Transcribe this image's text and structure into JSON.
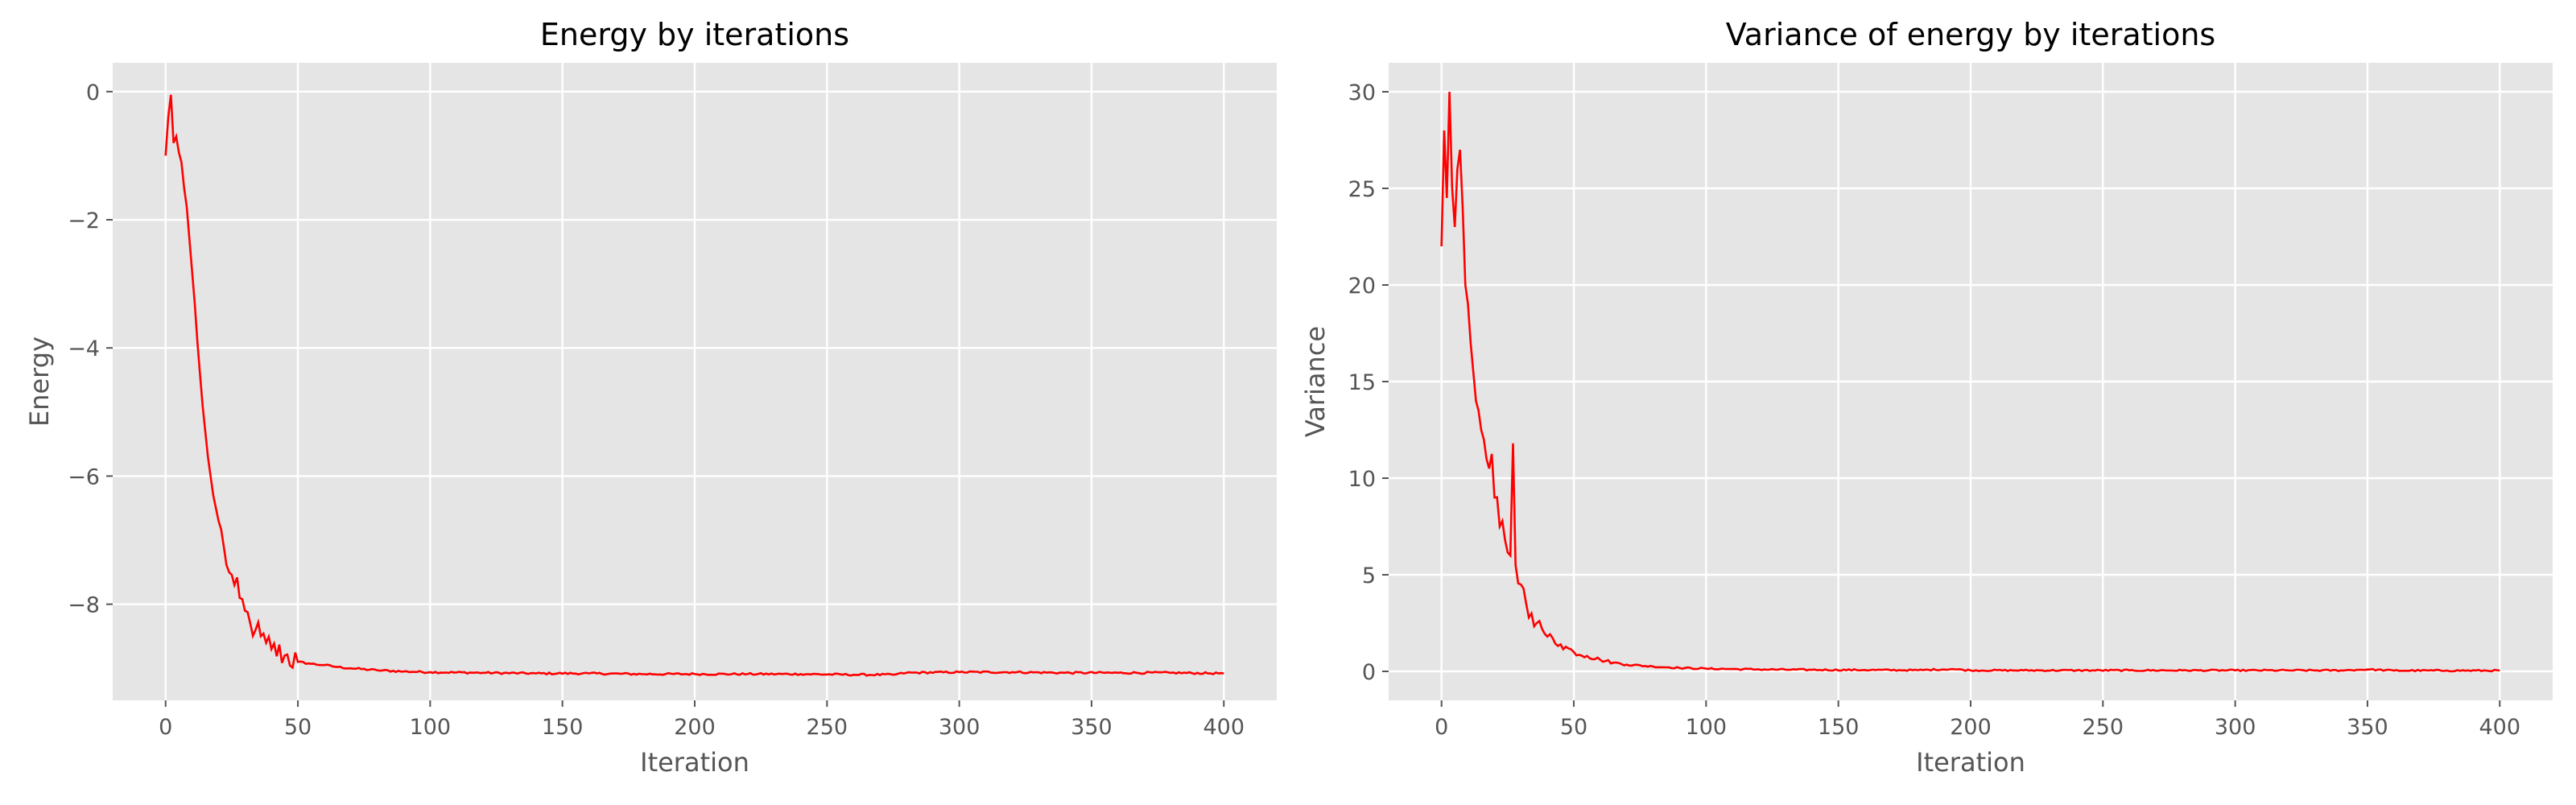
{
  "chart_data": [
    {
      "type": "line",
      "title": "Energy by iterations",
      "xlabel": "Iteration",
      "ylabel": "Energy",
      "xlim": [
        -20,
        420
      ],
      "ylim": [
        -9.5,
        0.45
      ],
      "xticks": [
        0,
        50,
        100,
        150,
        200,
        250,
        300,
        350,
        400
      ],
      "xtick_labels": [
        "0",
        "50",
        "100",
        "150",
        "200",
        "250",
        "300",
        "350",
        "400"
      ],
      "yticks": [
        0,
        -2,
        -4,
        -6,
        -8
      ],
      "ytick_labels": [
        "0",
        "−2",
        "−4",
        "−6",
        "−8"
      ],
      "grid": true,
      "series": [
        {
          "color": "#ff0000",
          "x": [
            0,
            1,
            2,
            3,
            4,
            5,
            6,
            7,
            8,
            9,
            10,
            11,
            12,
            13,
            14,
            15,
            16,
            17,
            18,
            19,
            20,
            22,
            24,
            26,
            28,
            30,
            32,
            34,
            36,
            38,
            40,
            45,
            50,
            55,
            60,
            65,
            70,
            80,
            90,
            100,
            120,
            140,
            160,
            180,
            200,
            220,
            240,
            260,
            275,
            280,
            300,
            320,
            340,
            360,
            380,
            400
          ],
          "y": [
            -1.0,
            -0.4,
            -0.05,
            -0.8,
            -0.7,
            -0.95,
            -1.1,
            -1.5,
            -1.8,
            -2.3,
            -2.8,
            -3.3,
            -3.9,
            -4.4,
            -4.9,
            -5.3,
            -5.7,
            -6.0,
            -6.3,
            -6.5,
            -6.7,
            -7.1,
            -7.5,
            -7.7,
            -7.9,
            -8.1,
            -8.3,
            -8.4,
            -8.5,
            -8.6,
            -8.7,
            -8.8,
            -8.9,
            -8.93,
            -8.95,
            -8.98,
            -9.0,
            -9.03,
            -9.05,
            -9.06,
            -9.07,
            -9.08,
            -9.08,
            -9.09,
            -9.09,
            -9.09,
            -9.09,
            -9.1,
            -9.1,
            -9.07,
            -9.06,
            -9.06,
            -9.07,
            -9.07,
            -9.07,
            -9.08
          ]
        }
      ]
    },
    {
      "type": "line",
      "title": "Variance of energy by iterations",
      "xlabel": "Iteration",
      "ylabel": "Variance",
      "xlim": [
        -20,
        420
      ],
      "ylim": [
        -1.5,
        31.5
      ],
      "xticks": [
        0,
        50,
        100,
        150,
        200,
        250,
        300,
        350,
        400
      ],
      "xtick_labels": [
        "0",
        "50",
        "100",
        "150",
        "200",
        "250",
        "300",
        "350",
        "400"
      ],
      "yticks": [
        0,
        5,
        10,
        15,
        20,
        25,
        30
      ],
      "ytick_labels": [
        "0",
        "5",
        "10",
        "15",
        "20",
        "25",
        "30"
      ],
      "grid": true,
      "series": [
        {
          "color": "#ff0000",
          "x": [
            0,
            1,
            2,
            3,
            4,
            5,
            6,
            7,
            8,
            9,
            10,
            11,
            12,
            13,
            14,
            15,
            16,
            17,
            18,
            20,
            22,
            24,
            26,
            27,
            28,
            30,
            32,
            34,
            36,
            38,
            40,
            45,
            50,
            55,
            60,
            65,
            70,
            80,
            90,
            100,
            110,
            120,
            140,
            160,
            180,
            193,
            200,
            220,
            240,
            260,
            280,
            300,
            320,
            340,
            350,
            360,
            380,
            400
          ],
          "y": [
            22,
            28,
            24.5,
            30,
            25,
            23,
            26,
            27,
            24,
            20,
            19,
            17,
            15.5,
            14,
            13.5,
            12.5,
            12,
            11,
            10.5,
            9,
            7.5,
            6.8,
            6,
            11.8,
            5.5,
            4.5,
            3.5,
            3,
            2.5,
            2.2,
            1.8,
            1.4,
            1.0,
            0.8,
            0.6,
            0.45,
            0.35,
            0.25,
            0.18,
            0.14,
            0.12,
            0.1,
            0.08,
            0.07,
            0.06,
            0.12,
            0.05,
            0.05,
            0.05,
            0.05,
            0.05,
            0.05,
            0.05,
            0.05,
            0.1,
            0.04,
            0.04,
            0.04
          ]
        }
      ]
    }
  ]
}
